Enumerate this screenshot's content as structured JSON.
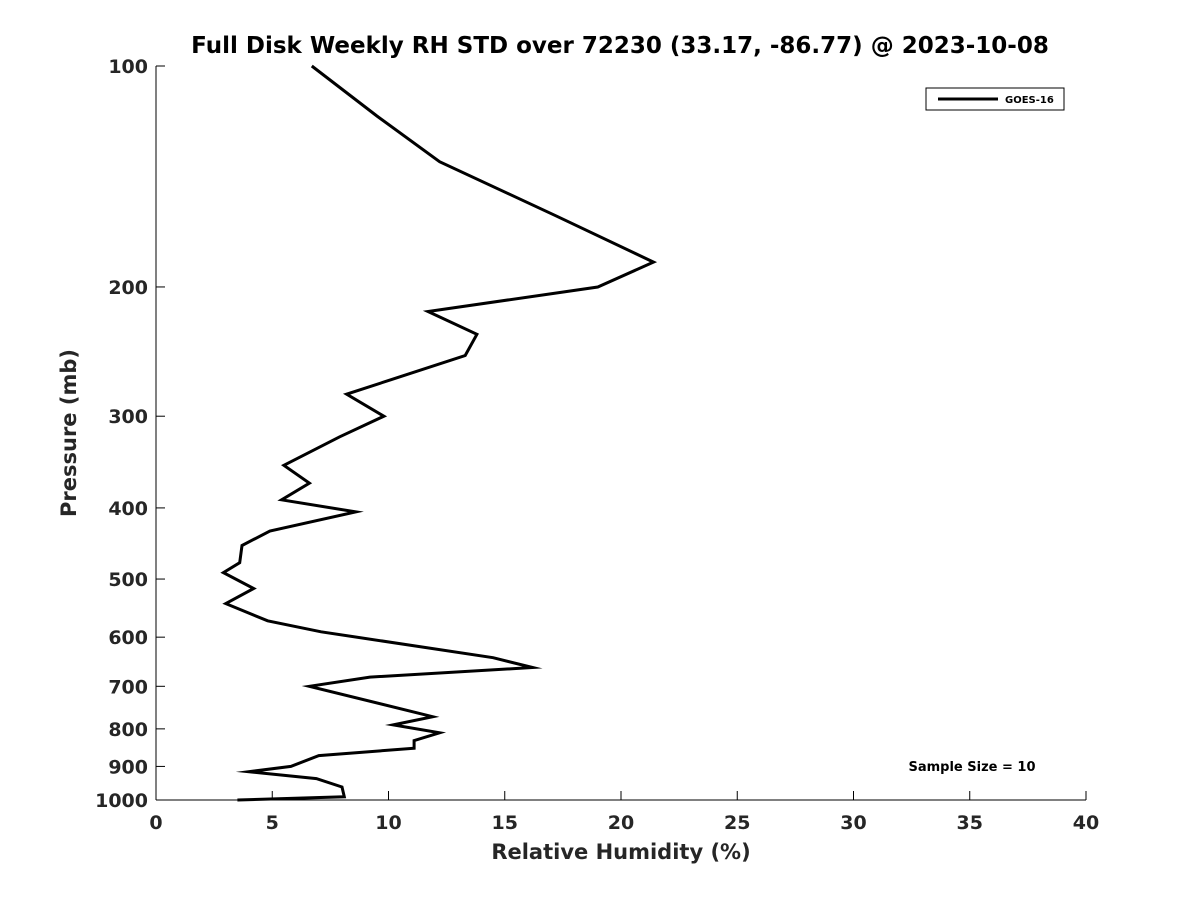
{
  "chart_data": {
    "type": "line",
    "title": "Full Disk Weekly RH STD over 72230 (33.17, -86.77) @ 2023-10-08",
    "xlabel": "Relative Humidity (%)",
    "ylabel": "Pressure (mb)",
    "xlim": [
      0,
      40
    ],
    "ylim": [
      100,
      1000
    ],
    "yscale": "log",
    "y_reversed": true,
    "grid": false,
    "x_ticks": [
      0,
      5,
      10,
      15,
      20,
      25,
      30,
      35,
      40
    ],
    "x_tick_labels": [
      "0",
      "5",
      "10",
      "15",
      "20",
      "25",
      "30",
      "35",
      "40"
    ],
    "y_ticks": [
      100,
      200,
      300,
      400,
      500,
      600,
      700,
      800,
      900,
      1000
    ],
    "y_tick_labels": [
      "100",
      "200",
      "300",
      "400",
      "500",
      "600",
      "700",
      "800",
      "900",
      "1000"
    ],
    "legend": {
      "position": "top-right",
      "entries": [
        "GOES-16"
      ]
    },
    "annotation": "Sample Size = 10",
    "series": [
      {
        "name": "GOES-16",
        "color": "#000000",
        "x": [
          6.7,
          9.5,
          12.2,
          17.2,
          21.4,
          19.0,
          11.7,
          13.8,
          13.3,
          8.2,
          9.8,
          7.9,
          5.5,
          6.6,
          5.4,
          8.6,
          4.9,
          3.7,
          3.6,
          2.9,
          4.2,
          3.0,
          4.8,
          7.1,
          14.5,
          16.2,
          9.2,
          6.6,
          11.9,
          10.2,
          12.2,
          11.1,
          11.1,
          7.0,
          5.8,
          4.0,
          6.9,
          8.0,
          8.1,
          3.5
        ],
        "y": [
          100,
          117,
          135,
          160,
          185,
          200,
          216,
          232,
          248,
          280,
          300,
          320,
          350,
          370,
          390,
          405,
          430,
          450,
          475,
          490,
          515,
          540,
          570,
          590,
          640,
          660,
          680,
          700,
          770,
          790,
          810,
          830,
          850,
          870,
          900,
          915,
          935,
          960,
          990,
          1000
        ]
      }
    ]
  }
}
